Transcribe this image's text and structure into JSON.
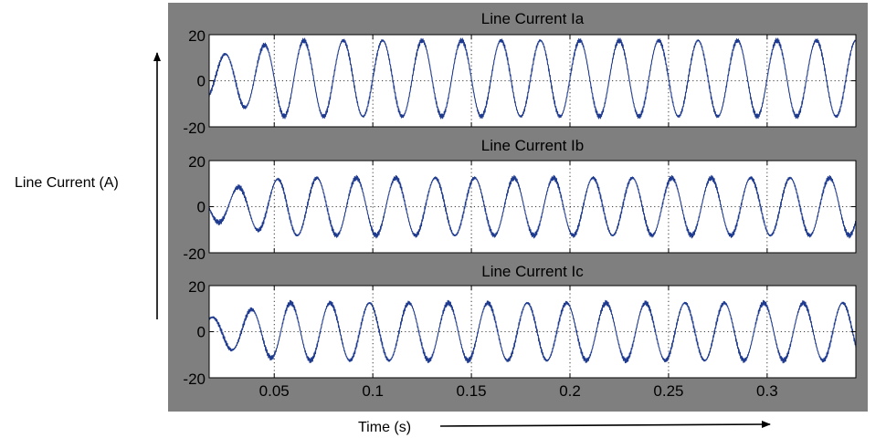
{
  "colors": {
    "frame": "#7f7f7f",
    "axes_background": "#ffffff",
    "trace": "#1f3b8f",
    "grid": "#000000"
  },
  "y_label": "Line Current (A)",
  "x_label": "Time (s)",
  "chart_data": [
    {
      "type": "line",
      "title": "Line Current Ia",
      "xlim": [
        0.017,
        0.345
      ],
      "ylim": [
        -20,
        20
      ],
      "yticks": [
        20,
        0,
        -20
      ],
      "yticklabels": [
        "20",
        "0",
        "-20"
      ],
      "xticks": [
        0.05,
        0.1,
        0.15,
        0.2,
        0.25,
        0.3
      ],
      "xticklabels": [],
      "grid": true,
      "series": [
        {
          "x_start": 0.017,
          "x_end": 0.345,
          "frequency_hz": 50,
          "amplitude": 16.5,
          "phase_deg": 0,
          "onset_start": 0.017,
          "onset_end": 0.055,
          "amplitude_at_start": 9,
          "dc_offset": 1,
          "x_peaks": [
            0.0195,
            0.0325,
            0.053,
            0.0765,
            0.1005,
            0.1215,
            0.1465,
            0.1665,
            0.1915,
            0.2145,
            0.2415,
            0.2615,
            0.2905,
            0.3095,
            0.3345
          ],
          "y_peaks": [
            10,
            13,
            15.5,
            16.5,
            17,
            17,
            17,
            17,
            16,
            16.5,
            16,
            16,
            17,
            16.5,
            16.5
          ],
          "x_troughs": [
            0.0255,
            0.043,
            0.0655,
            0.0865,
            0.1095,
            0.1325,
            0.1545,
            0.1765,
            0.2005,
            0.2205,
            0.2455,
            0.2705,
            0.2955,
            0.3175,
            0.3395
          ],
          "y_troughs": [
            -10,
            -12,
            -16,
            -16.5,
            -16.5,
            -16.5,
            -17,
            -17,
            -17,
            -16.5,
            -16,
            -16.5,
            -16.5,
            -16.5,
            -16.5
          ]
        }
      ]
    },
    {
      "type": "line",
      "title": "Line Current Ib",
      "xlim": [
        0.017,
        0.345
      ],
      "ylim": [
        -20,
        20
      ],
      "yticks": [
        20,
        0,
        -20
      ],
      "yticklabels": [
        "20",
        "0",
        "-20"
      ],
      "xticks": [
        0.05,
        0.1,
        0.15,
        0.2,
        0.25,
        0.3
      ],
      "xticklabels": [],
      "grid": true,
      "series": [
        {
          "x_start": 0.017,
          "x_end": 0.345,
          "frequency_hz": 50,
          "amplitude": 12.5,
          "phase_deg": -120,
          "onset_start": 0.017,
          "onset_end": 0.055,
          "amplitude_at_start": 6,
          "dc_offset": 0,
          "x_peaks": [
            0.0295,
            0.0505,
            0.0715,
            0.0945,
            0.1155,
            0.1375,
            0.1605,
            0.1825,
            0.2055,
            0.2265,
            0.2495,
            0.2715,
            0.2945,
            0.3165
          ],
          "y_peaks": [
            8,
            12,
            12.5,
            13,
            13,
            13,
            13,
            13,
            13,
            12.5,
            12.5,
            12.5,
            12.5,
            12.5
          ],
          "x_troughs": [
            0.0185,
            0.0405,
            0.0615,
            0.0845,
            0.1055,
            0.1275,
            0.1505,
            0.1725,
            0.1955,
            0.2165,
            0.2395,
            0.2615,
            0.2845,
            0.3065,
            0.3295
          ],
          "y_troughs": [
            -5,
            -8,
            -12,
            -12.5,
            -13,
            -12.5,
            -13,
            -12.5,
            -12.5,
            -12.5,
            -12.5,
            -12.5,
            -12.5,
            -12.5,
            -12.5
          ]
        }
      ]
    },
    {
      "type": "line",
      "title": "Line Current Ic",
      "xlim": [
        0.017,
        0.345
      ],
      "ylim": [
        -20,
        20
      ],
      "yticks": [
        20,
        0,
        -20
      ],
      "yticklabels": [
        "20",
        "0",
        "-20"
      ],
      "xticks": [
        0.05,
        0.1,
        0.15,
        0.2,
        0.25,
        0.3
      ],
      "xticklabels": [
        "0.05",
        "0.1",
        "0.15",
        "0.2",
        "0.25",
        "0.3"
      ],
      "grid": true,
      "series": [
        {
          "x_start": 0.017,
          "x_end": 0.345,
          "frequency_hz": 50,
          "amplitude": 12.5,
          "phase_deg": 120,
          "onset_start": 0.017,
          "onset_end": 0.055,
          "amplitude_at_start": 6,
          "dc_offset": 0,
          "x_peaks": [
            0.0295,
            0.0505,
            0.0715,
            0.0945,
            0.1155,
            0.1375,
            0.1605,
            0.1825,
            0.2055,
            0.2265,
            0.2495,
            0.2715,
            0.2945,
            0.3165,
            0.3385
          ],
          "y_peaks": [
            9,
            12,
            13,
            13,
            13,
            13,
            13,
            13,
            13,
            13,
            13,
            13,
            13,
            13,
            13
          ],
          "x_troughs": [
            0.0185,
            0.0405,
            0.0615,
            0.0845,
            0.1055,
            0.1275,
            0.1505,
            0.1725,
            0.1955,
            0.2165,
            0.2395,
            0.2615,
            0.2845,
            0.3065,
            0.3295
          ],
          "y_troughs": [
            -1,
            -10,
            -12.5,
            -13,
            -13,
            -13,
            -13,
            -13,
            -13,
            -13,
            -13,
            -13,
            -13,
            -13,
            -13
          ]
        }
      ]
    }
  ]
}
